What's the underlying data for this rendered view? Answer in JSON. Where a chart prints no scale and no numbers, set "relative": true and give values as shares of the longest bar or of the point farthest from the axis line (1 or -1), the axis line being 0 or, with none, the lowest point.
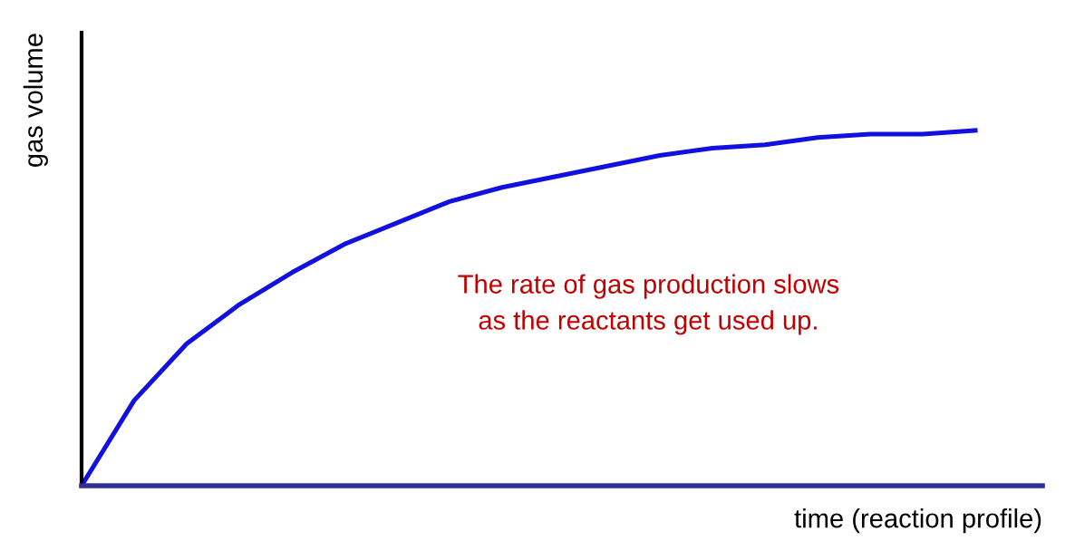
{
  "chart_data": {
    "type": "line",
    "relative": true,
    "xlabel": "time (reaction profile)",
    "ylabel": "gas volume",
    "annotations": [
      "The rate of gas production slows\nas the reactants get used up."
    ],
    "categories": [
      null,
      null,
      null,
      null,
      null,
      null,
      null,
      null,
      null,
      null,
      null,
      null,
      null,
      null,
      null,
      null,
      null,
      null
    ],
    "series": [
      {
        "color": "#1010e0",
        "values": [
          0,
          0.24,
          0.4,
          0.51,
          0.6,
          0.68,
          0.74,
          0.8,
          0.84,
          0.87,
          0.9,
          0.93,
          0.95,
          0.96,
          0.98,
          0.99,
          0.99,
          1
        ]
      }
    ],
    "legend": false
  }
}
